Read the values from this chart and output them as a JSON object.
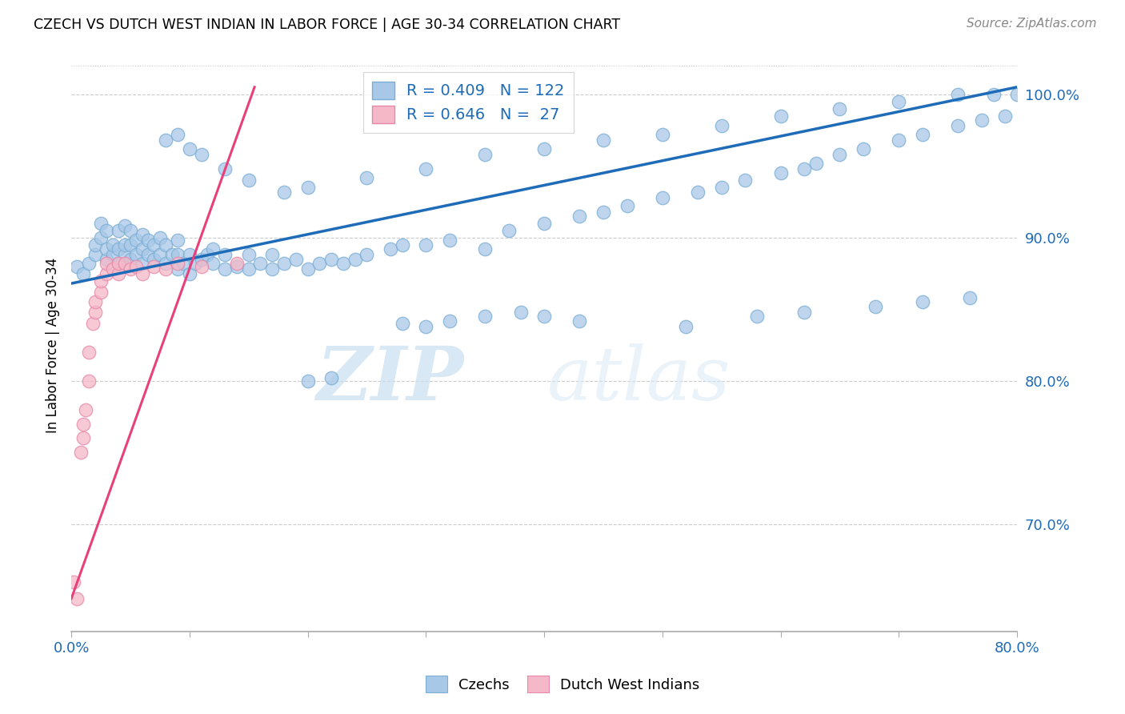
{
  "title": "CZECH VS DUTCH WEST INDIAN IN LABOR FORCE | AGE 30-34 CORRELATION CHART",
  "source": "Source: ZipAtlas.com",
  "ylabel": "In Labor Force | Age 30-34",
  "czechs_label": "Czechs",
  "dutch_label": "Dutch West Indians",
  "watermark_zip": "ZIP",
  "watermark_atlas": "atlas",
  "xmin": 0.0,
  "xmax": 0.8,
  "ymin": 0.625,
  "ymax": 1.025,
  "blue_R": 0.409,
  "blue_N": 122,
  "pink_R": 0.646,
  "pink_N": 27,
  "blue_color": "#a8c8e8",
  "blue_edge_color": "#7aaed4",
  "pink_color": "#f5b8c8",
  "pink_edge_color": "#e888a8",
  "blue_line_color": "#1e6bb8",
  "pink_line_color": "#e8407a",
  "blue_line_x0": 0.0,
  "blue_line_x1": 0.8,
  "blue_line_y0": 0.868,
  "blue_line_y1": 1.005,
  "pink_line_x0": 0.0,
  "pink_line_x1": 0.155,
  "pink_line_y0": 0.648,
  "pink_line_y1": 1.005,
  "ytick_vals": [
    0.7,
    0.8,
    0.9,
    1.0
  ],
  "ytick_labels": [
    "70.0%",
    "80.0%",
    "90.0%",
    "100.0%"
  ],
  "blue_x": [
    0.005,
    0.01,
    0.015,
    0.02,
    0.02,
    0.025,
    0.025,
    0.03,
    0.03,
    0.03,
    0.035,
    0.035,
    0.04,
    0.04,
    0.04,
    0.045,
    0.045,
    0.045,
    0.05,
    0.05,
    0.05,
    0.055,
    0.055,
    0.06,
    0.06,
    0.06,
    0.065,
    0.065,
    0.07,
    0.07,
    0.075,
    0.075,
    0.08,
    0.08,
    0.085,
    0.09,
    0.09,
    0.09,
    0.095,
    0.1,
    0.1,
    0.105,
    0.11,
    0.115,
    0.12,
    0.12,
    0.13,
    0.13,
    0.14,
    0.15,
    0.15,
    0.16,
    0.17,
    0.17,
    0.18,
    0.19,
    0.2,
    0.21,
    0.22,
    0.23,
    0.24,
    0.25,
    0.27,
    0.28,
    0.3,
    0.32,
    0.35,
    0.37,
    0.4,
    0.43,
    0.45,
    0.47,
    0.5,
    0.53,
    0.55,
    0.57,
    0.6,
    0.62,
    0.63,
    0.65,
    0.67,
    0.7,
    0.72,
    0.75,
    0.77,
    0.79,
    0.28,
    0.3,
    0.32,
    0.35,
    0.38,
    0.4,
    0.43,
    0.2,
    0.22,
    0.08,
    0.09,
    0.1,
    0.11,
    0.13,
    0.15,
    0.18,
    0.2,
    0.25,
    0.3,
    0.35,
    0.4,
    0.45,
    0.5,
    0.55,
    0.6,
    0.65,
    0.7,
    0.75,
    0.78,
    0.8,
    0.52,
    0.58,
    0.62,
    0.68,
    0.72,
    0.76
  ],
  "blue_y": [
    0.88,
    0.875,
    0.882,
    0.888,
    0.895,
    0.9,
    0.91,
    0.885,
    0.892,
    0.905,
    0.888,
    0.895,
    0.882,
    0.892,
    0.905,
    0.888,
    0.895,
    0.908,
    0.885,
    0.895,
    0.905,
    0.888,
    0.898,
    0.882,
    0.892,
    0.902,
    0.888,
    0.898,
    0.885,
    0.895,
    0.888,
    0.9,
    0.882,
    0.895,
    0.888,
    0.878,
    0.888,
    0.898,
    0.882,
    0.875,
    0.888,
    0.882,
    0.885,
    0.888,
    0.882,
    0.892,
    0.878,
    0.888,
    0.88,
    0.878,
    0.888,
    0.882,
    0.878,
    0.888,
    0.882,
    0.885,
    0.878,
    0.882,
    0.885,
    0.882,
    0.885,
    0.888,
    0.892,
    0.895,
    0.895,
    0.898,
    0.892,
    0.905,
    0.91,
    0.915,
    0.918,
    0.922,
    0.928,
    0.932,
    0.935,
    0.94,
    0.945,
    0.948,
    0.952,
    0.958,
    0.962,
    0.968,
    0.972,
    0.978,
    0.982,
    0.985,
    0.84,
    0.838,
    0.842,
    0.845,
    0.848,
    0.845,
    0.842,
    0.8,
    0.802,
    0.968,
    0.972,
    0.962,
    0.958,
    0.948,
    0.94,
    0.932,
    0.935,
    0.942,
    0.948,
    0.958,
    0.962,
    0.968,
    0.972,
    0.978,
    0.985,
    0.99,
    0.995,
    1.0,
    1.0,
    1.0,
    0.838,
    0.845,
    0.848,
    0.852,
    0.855,
    0.858
  ],
  "pink_x": [
    0.002,
    0.005,
    0.008,
    0.01,
    0.01,
    0.012,
    0.015,
    0.015,
    0.018,
    0.02,
    0.02,
    0.025,
    0.025,
    0.03,
    0.03,
    0.035,
    0.04,
    0.04,
    0.045,
    0.05,
    0.055,
    0.06,
    0.07,
    0.08,
    0.09,
    0.11,
    0.14
  ],
  "pink_y": [
    0.66,
    0.648,
    0.75,
    0.76,
    0.77,
    0.78,
    0.8,
    0.82,
    0.84,
    0.848,
    0.855,
    0.862,
    0.87,
    0.875,
    0.882,
    0.878,
    0.875,
    0.882,
    0.882,
    0.878,
    0.88,
    0.875,
    0.88,
    0.878,
    0.882,
    0.88,
    0.882
  ]
}
